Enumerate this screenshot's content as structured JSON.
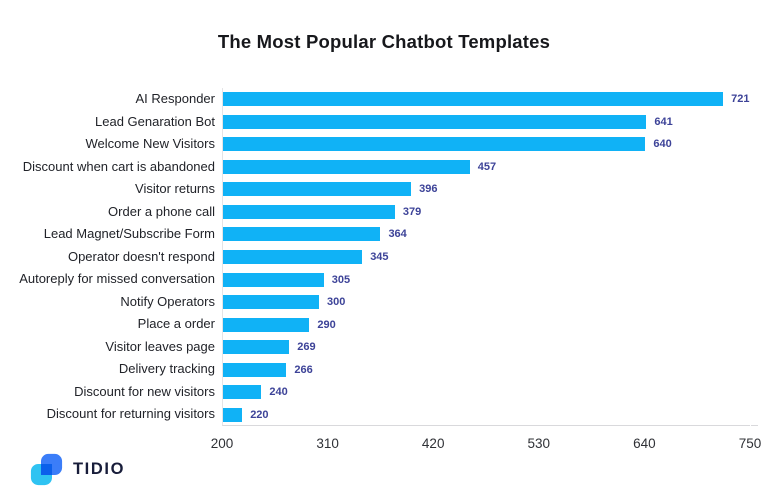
{
  "title": "The Most Popular Chatbot Templates",
  "chart_data": {
    "type": "bar",
    "orientation": "horizontal",
    "title": "The Most Popular Chatbot Templates",
    "categories": [
      "AI Responder",
      "Lead Genaration Bot",
      "Welcome New Visitors",
      "Discount when cart is abandoned",
      "Visitor returns",
      "Order a phone call",
      "Lead Magnet/Subscribe Form",
      "Operator doesn't respond",
      "Autoreply for missed conversation",
      "Notify Operators",
      "Place a order",
      "Visitor leaves page",
      "Delivery tracking",
      "Discount for new visitors",
      "Discount for returning visitors"
    ],
    "values": [
      721,
      641,
      640,
      457,
      396,
      379,
      364,
      345,
      305,
      300,
      290,
      269,
      266,
      240,
      220
    ],
    "xlim": [
      200,
      750
    ],
    "xticks": [
      "200",
      "310",
      "420",
      "530",
      "640",
      "750"
    ],
    "grid": false,
    "legend": "none",
    "xlabel": "",
    "ylabel": "",
    "colors": {
      "bar": "#10b2f6",
      "value_label": "#3d4398",
      "category_label": "#212329",
      "tick_label": "#2f3136",
      "axis_line": "#d9d9dc",
      "title": "#17181c"
    }
  },
  "footer": {
    "logo_text": "TIDIO",
    "logo_colors": {
      "blue": "#3b7df8",
      "cyan": "#2fc3f2",
      "text": "#181d3a"
    }
  }
}
